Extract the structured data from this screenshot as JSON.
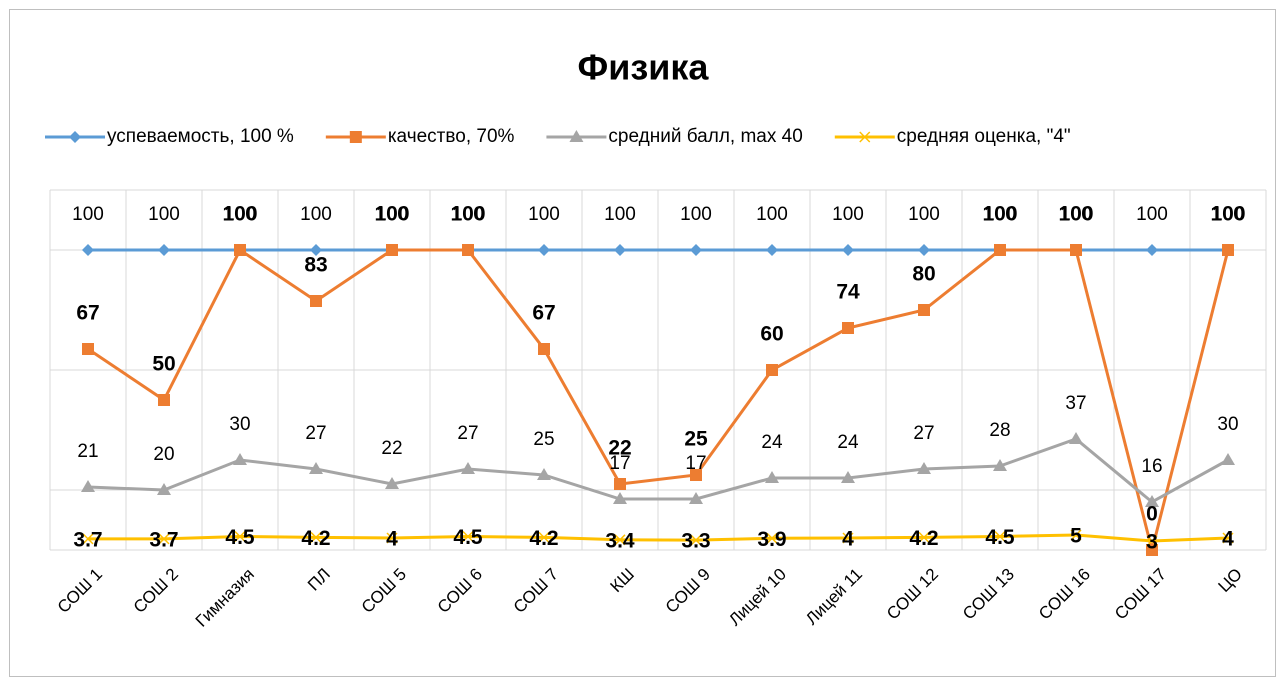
{
  "chart_data": {
    "type": "line",
    "title": "Физика",
    "categories": [
      "СОШ 1",
      "СОШ 2",
      "Гимназия",
      "ПЛ",
      "СОШ 5",
      "СОШ 6",
      "СОШ 7",
      "КШ",
      "СОШ 9",
      "Лицей 10",
      "Лицей 11",
      "СОШ 12",
      "СОШ 13",
      "СОШ 16",
      "СОШ 17",
      "ЦО"
    ],
    "series": [
      {
        "name": "успеваемость,  100 %",
        "color": "#5b9bd5",
        "marker": "diamond",
        "values": [
          100,
          100,
          100,
          100,
          100,
          100,
          100,
          100,
          100,
          100,
          100,
          100,
          100,
          100,
          100,
          100
        ]
      },
      {
        "name": "качество, 70%",
        "color": "#ed7d31",
        "marker": "square",
        "values": [
          67,
          50,
          100,
          83,
          100,
          100,
          67,
          22,
          25,
          60,
          74,
          80,
          100,
          100,
          0,
          100
        ]
      },
      {
        "name": "средний балл, max 40",
        "color": "#a5a5a5",
        "marker": "triangle",
        "values": [
          21,
          20,
          30,
          27,
          22,
          27,
          25,
          17,
          17,
          24,
          24,
          27,
          28,
          37,
          16,
          30
        ]
      },
      {
        "name": "средняя оценка, \"4\"",
        "color": "#ffc000",
        "marker": "x",
        "values": [
          3.7,
          3.7,
          4.5,
          4.2,
          4,
          4.5,
          4.2,
          3.4,
          3.3,
          3.9,
          4,
          4.2,
          4.5,
          5,
          3,
          4
        ]
      }
    ],
    "ylim": [
      0,
      120
    ],
    "yticks": [
      0,
      20,
      60,
      100,
      120
    ],
    "grid": true,
    "legend": "top"
  }
}
